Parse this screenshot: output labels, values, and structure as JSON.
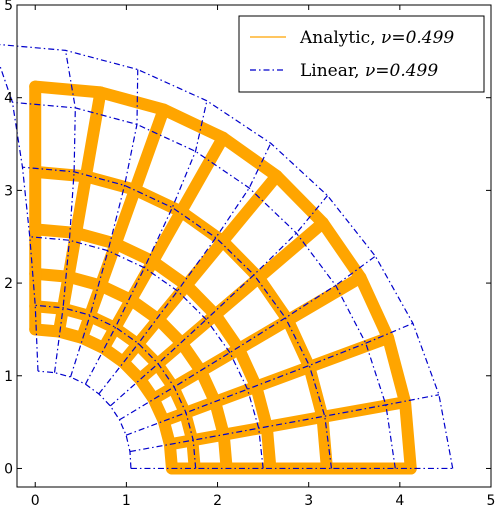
{
  "chart_data": {
    "type": "line",
    "title": "",
    "xlabel": "",
    "ylabel": "",
    "xlim": [
      -0.2,
      5
    ],
    "ylim": [
      -0.2,
      5
    ],
    "xticks": [
      "0",
      "1",
      "2",
      "3",
      "4",
      "5"
    ],
    "yticks": [
      "0",
      "1",
      "2",
      "3",
      "4",
      "5"
    ],
    "grid": false,
    "legend_position": "top-right",
    "mesh": {
      "radial_lines": 10,
      "arc_lines": 6,
      "angle_range_deg": [
        0,
        90
      ]
    },
    "series": [
      {
        "name": "Analytic, ν=0.499",
        "legend_prefix": "Analytic, ",
        "legend_math": "ν=0.499",
        "color": "#ffa500",
        "linestyle": "solid",
        "radii": [
          1.5,
          1.75,
          2.1,
          2.58,
          3.2,
          4.12
        ],
        "x_shift": [
          0,
          0,
          0,
          0,
          0,
          0
        ]
      },
      {
        "name": "Linear, ν=0.499",
        "legend_prefix": "Linear, ",
        "legend_math": "ν=0.499",
        "color": "#0000cc",
        "linestyle": "dashdot",
        "radii": [
          1.05,
          1.76,
          2.5,
          3.25,
          3.95,
          4.58
        ],
        "x_shift": [
          0.03,
          0.0,
          -0.06,
          -0.14,
          -0.25,
          -0.47
        ]
      }
    ]
  }
}
